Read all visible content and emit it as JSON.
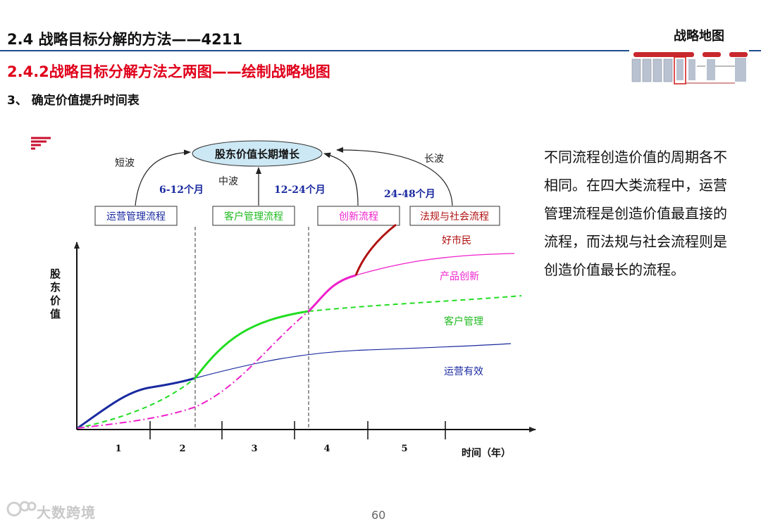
{
  "header": {
    "section_title": "2.4  战略目标分解的方法——4211",
    "corner_title": "战略地图",
    "subsection_title": "2.4.2战略目标分解方法之两图——绘制战略地图",
    "step_title": "3、 确定价值提升时间表"
  },
  "diagram": {
    "goal": "股东价值长期增长",
    "wave_short": "短波",
    "wave_mid": "中波",
    "wave_long": "长波",
    "period_1": "6-12个月",
    "period_2": "12-24个月",
    "period_3": "24-48个月",
    "process_ops": "运营管理流程",
    "process_customer": "客户管理流程",
    "process_innovation": "创新流程",
    "process_regulatory": "法规与社会流程",
    "y_axis_label": "股东价值",
    "x_axis_label": "时间（年）",
    "x_ticks": [
      "1",
      "2",
      "3",
      "4",
      "5"
    ],
    "curve_regulatory": "好市民",
    "curve_innovation": "产品创新",
    "curve_customer": "客户管理",
    "curve_ops": "运营有效",
    "colors": {
      "ops": "#1a2aa0",
      "customer": "#22dd22",
      "innovation": "#ee22cc",
      "regulatory": "#b01010",
      "goal_fill": "#cde8f5"
    }
  },
  "sidebar": {
    "text": "不同流程创造价值的周期各不相同。在四大类流程中，运营管理流程是创造价值最直接的流程，而法规与社会流程则是创造价值最长的流程。"
  },
  "footer": {
    "page_number": "60",
    "watermark": "大数跨境"
  }
}
